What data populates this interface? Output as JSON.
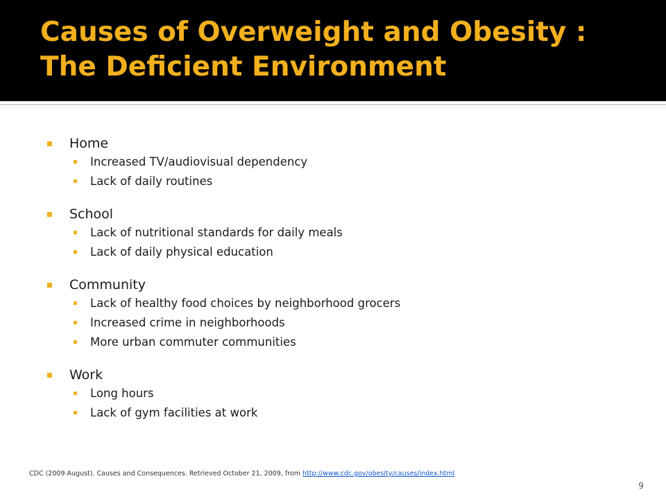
{
  "slide": {
    "title_line1": "Causes of Overweight and Obesity :",
    "title_line2": "The Deficient Environment",
    "colors": {
      "title_bar": "#000000",
      "title_text": "#f2b01e",
      "bullet": "#f2b01e",
      "body_text": "#1a1a1a"
    }
  },
  "sections": [
    {
      "heading": "Home",
      "items": [
        "Increased TV/audiovisual dependency",
        "Lack of daily routines"
      ]
    },
    {
      "heading": "School",
      "items": [
        "Lack of nutritional standards for daily meals",
        "Lack of daily physical education"
      ]
    },
    {
      "heading": "Community",
      "items": [
        "Lack of healthy food choices by neighborhood grocers",
        "Increased crime in neighborhoods",
        "More urban commuter communities"
      ]
    },
    {
      "heading": "Work",
      "items": [
        "Long hours",
        "Lack of gym facilities at work"
      ]
    }
  ],
  "citation": {
    "text": "CDC (2009 August). Causes and Consequences. Retrieved October 21, 2009, from ",
    "link_text": "http://www.cdc.gov/obesity/causes/index.html"
  },
  "page_number": "9"
}
